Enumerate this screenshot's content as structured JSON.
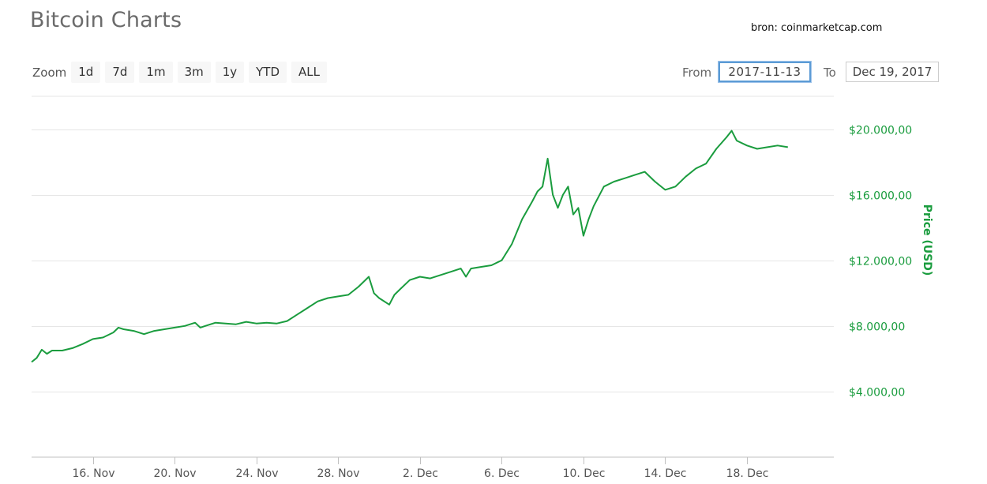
{
  "header": {
    "title": "Bitcoin Charts",
    "source": "bron: coinmarketcap.com"
  },
  "zoom": {
    "label": "Zoom",
    "buttons": [
      "1d",
      "7d",
      "1m",
      "3m",
      "1y",
      "YTD",
      "ALL"
    ]
  },
  "range": {
    "from_label": "From",
    "from_value": "2017-11-13",
    "to_label": "To",
    "to_value": "Dec 19, 2017"
  },
  "chart_data": {
    "type": "line",
    "title": "Bitcoin Charts",
    "ylabel": "Price (USD)",
    "xlabel": "",
    "line_color": "#1a9c3e",
    "grid": true,
    "y_axis_position": "right",
    "ylim": [
      0,
      22000
    ],
    "xlim": [
      "2017-11-13T00:00",
      "2017-12-22T06:00"
    ],
    "y_ticks": [
      {
        "value": 4000,
        "label": "$4.000,00"
      },
      {
        "value": 8000,
        "label": "$8.000,00"
      },
      {
        "value": 12000,
        "label": "$12.000,00"
      },
      {
        "value": 16000,
        "label": "$16.000,00"
      },
      {
        "value": 20000,
        "label": "$20.000,00"
      }
    ],
    "x_ticks": [
      {
        "date": "2017-11-16T00:00",
        "label": "16. Nov"
      },
      {
        "date": "2017-11-20T00:00",
        "label": "20. Nov"
      },
      {
        "date": "2017-11-24T00:00",
        "label": "24. Nov"
      },
      {
        "date": "2017-11-28T00:00",
        "label": "28. Nov"
      },
      {
        "date": "2017-12-02T00:00",
        "label": "2. Dec"
      },
      {
        "date": "2017-12-06T00:00",
        "label": "6. Dec"
      },
      {
        "date": "2017-12-10T00:00",
        "label": "10. Dec"
      },
      {
        "date": "2017-12-14T00:00",
        "label": "14. Dec"
      },
      {
        "date": "2017-12-18T00:00",
        "label": "18. Dec"
      }
    ],
    "series": [
      {
        "points": [
          [
            "2017-11-13T00:00",
            5800
          ],
          [
            "2017-11-13T06:00",
            6050
          ],
          [
            "2017-11-13T12:00",
            6550
          ],
          [
            "2017-11-13T18:00",
            6300
          ],
          [
            "2017-11-14T00:00",
            6500
          ],
          [
            "2017-11-14T12:00",
            6500
          ],
          [
            "2017-11-15T00:00",
            6650
          ],
          [
            "2017-11-15T12:00",
            6900
          ],
          [
            "2017-11-16T00:00",
            7200
          ],
          [
            "2017-11-16T12:00",
            7300
          ],
          [
            "2017-11-17T00:00",
            7600
          ],
          [
            "2017-11-17T06:00",
            7900
          ],
          [
            "2017-11-17T12:00",
            7800
          ],
          [
            "2017-11-18T00:00",
            7700
          ],
          [
            "2017-11-18T12:00",
            7500
          ],
          [
            "2017-11-19T00:00",
            7700
          ],
          [
            "2017-11-19T12:00",
            7800
          ],
          [
            "2017-11-20T00:00",
            7900
          ],
          [
            "2017-11-20T12:00",
            8000
          ],
          [
            "2017-11-21T00:00",
            8200
          ],
          [
            "2017-11-21T06:00",
            7900
          ],
          [
            "2017-11-21T12:00",
            8000
          ],
          [
            "2017-11-22T00:00",
            8200
          ],
          [
            "2017-11-22T12:00",
            8150
          ],
          [
            "2017-11-23T00:00",
            8100
          ],
          [
            "2017-11-23T12:00",
            8250
          ],
          [
            "2017-11-24T00:00",
            8150
          ],
          [
            "2017-11-24T12:00",
            8200
          ],
          [
            "2017-11-25T00:00",
            8150
          ],
          [
            "2017-11-25T12:00",
            8300
          ],
          [
            "2017-11-26T00:00",
            8700
          ],
          [
            "2017-11-26T12:00",
            9100
          ],
          [
            "2017-11-27T00:00",
            9500
          ],
          [
            "2017-11-27T12:00",
            9700
          ],
          [
            "2017-11-28T00:00",
            9800
          ],
          [
            "2017-11-28T12:00",
            9900
          ],
          [
            "2017-11-29T00:00",
            10400
          ],
          [
            "2017-11-29T12:00",
            11000
          ],
          [
            "2017-11-29T18:00",
            10000
          ],
          [
            "2017-11-30T00:00",
            9700
          ],
          [
            "2017-11-30T12:00",
            9300
          ],
          [
            "2017-11-30T18:00",
            9900
          ],
          [
            "2017-12-01T00:00",
            10200
          ],
          [
            "2017-12-01T12:00",
            10800
          ],
          [
            "2017-12-02T00:00",
            11000
          ],
          [
            "2017-12-02T12:00",
            10900
          ],
          [
            "2017-12-03T00:00",
            11100
          ],
          [
            "2017-12-03T12:00",
            11300
          ],
          [
            "2017-12-04T00:00",
            11500
          ],
          [
            "2017-12-04T06:00",
            11000
          ],
          [
            "2017-12-04T12:00",
            11500
          ],
          [
            "2017-12-05T00:00",
            11600
          ],
          [
            "2017-12-05T12:00",
            11700
          ],
          [
            "2017-12-06T00:00",
            12000
          ],
          [
            "2017-12-06T12:00",
            13000
          ],
          [
            "2017-12-07T00:00",
            14500
          ],
          [
            "2017-12-07T12:00",
            15600
          ],
          [
            "2017-12-07T18:00",
            16200
          ],
          [
            "2017-12-08T00:00",
            16500
          ],
          [
            "2017-12-08T06:00",
            18200
          ],
          [
            "2017-12-08T12:00",
            16000
          ],
          [
            "2017-12-08T18:00",
            15200
          ],
          [
            "2017-12-09T00:00",
            16000
          ],
          [
            "2017-12-09T06:00",
            16500
          ],
          [
            "2017-12-09T12:00",
            14800
          ],
          [
            "2017-12-09T18:00",
            15200
          ],
          [
            "2017-12-10T00:00",
            13500
          ],
          [
            "2017-12-10T06:00",
            14500
          ],
          [
            "2017-12-10T12:00",
            15300
          ],
          [
            "2017-12-11T00:00",
            16500
          ],
          [
            "2017-12-11T12:00",
            16800
          ],
          [
            "2017-12-12T00:00",
            17000
          ],
          [
            "2017-12-12T12:00",
            17200
          ],
          [
            "2017-12-13T00:00",
            17400
          ],
          [
            "2017-12-13T12:00",
            16800
          ],
          [
            "2017-12-14T00:00",
            16300
          ],
          [
            "2017-12-14T12:00",
            16500
          ],
          [
            "2017-12-15T00:00",
            17100
          ],
          [
            "2017-12-15T12:00",
            17600
          ],
          [
            "2017-12-16T00:00",
            17900
          ],
          [
            "2017-12-16T12:00",
            18800
          ],
          [
            "2017-12-17T00:00",
            19500
          ],
          [
            "2017-12-17T06:00",
            19900
          ],
          [
            "2017-12-17T12:00",
            19300
          ],
          [
            "2017-12-18T00:00",
            19000
          ],
          [
            "2017-12-18T12:00",
            18800
          ],
          [
            "2017-12-19T00:00",
            18900
          ],
          [
            "2017-12-19T12:00",
            19000
          ],
          [
            "2017-12-20T00:00",
            18900
          ]
        ]
      }
    ]
  }
}
